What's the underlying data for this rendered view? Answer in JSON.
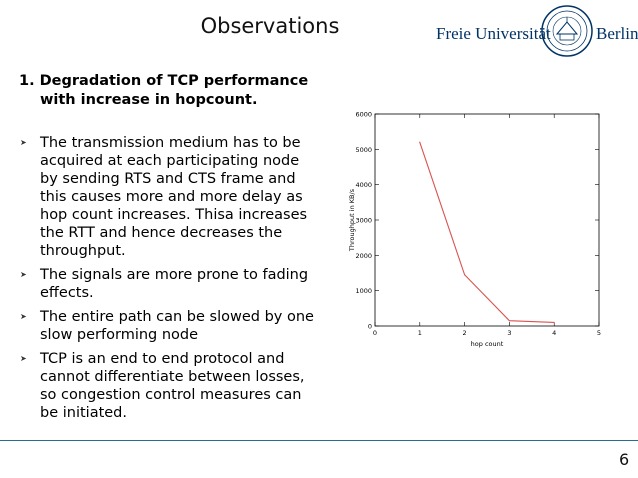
{
  "slide": {
    "title": "Observations",
    "logo": {
      "name_left": "Freie Universität",
      "name_right": "Berlin"
    },
    "heading_line1": "1. Degradation of TCP performance",
    "heading_line2": "with increase in hopcount.",
    "bullets": [
      "The transmission medium has to be acquired at each participating node by sending RTS and CTS frame and this causes more and more delay as hop count increases. Thisa increases the RTT and hence decreases the throughput.",
      "The signals are more prone to fading effects.",
      "The entire path can be slowed by one slow performing node",
      "TCP is an end to end protocol and cannot differentiate between losses, so congestion control measures can be initiated."
    ],
    "page_number": "6",
    "colors": {
      "accent": "#2a6a93",
      "logo_blue": "#003366",
      "series_line": "#d9534f"
    },
    "icons": {
      "bullet": "arrowhead-icon",
      "logo": "university-seal-icon"
    }
  },
  "chart_data": {
    "type": "line",
    "title": "",
    "xlabel": "hop count",
    "ylabel": "Throughput in KB/s",
    "xlim": [
      0,
      5
    ],
    "ylim": [
      0,
      6000
    ],
    "xticks": [
      0,
      1,
      2,
      3,
      4,
      5
    ],
    "yticks": [
      0,
      1000,
      2000,
      3000,
      4000,
      5000,
      6000
    ],
    "grid": false,
    "series": [
      {
        "x": [
          1,
          2,
          3,
          4
        ],
        "values": [
          5200,
          1450,
          150,
          100
        ]
      }
    ]
  }
}
